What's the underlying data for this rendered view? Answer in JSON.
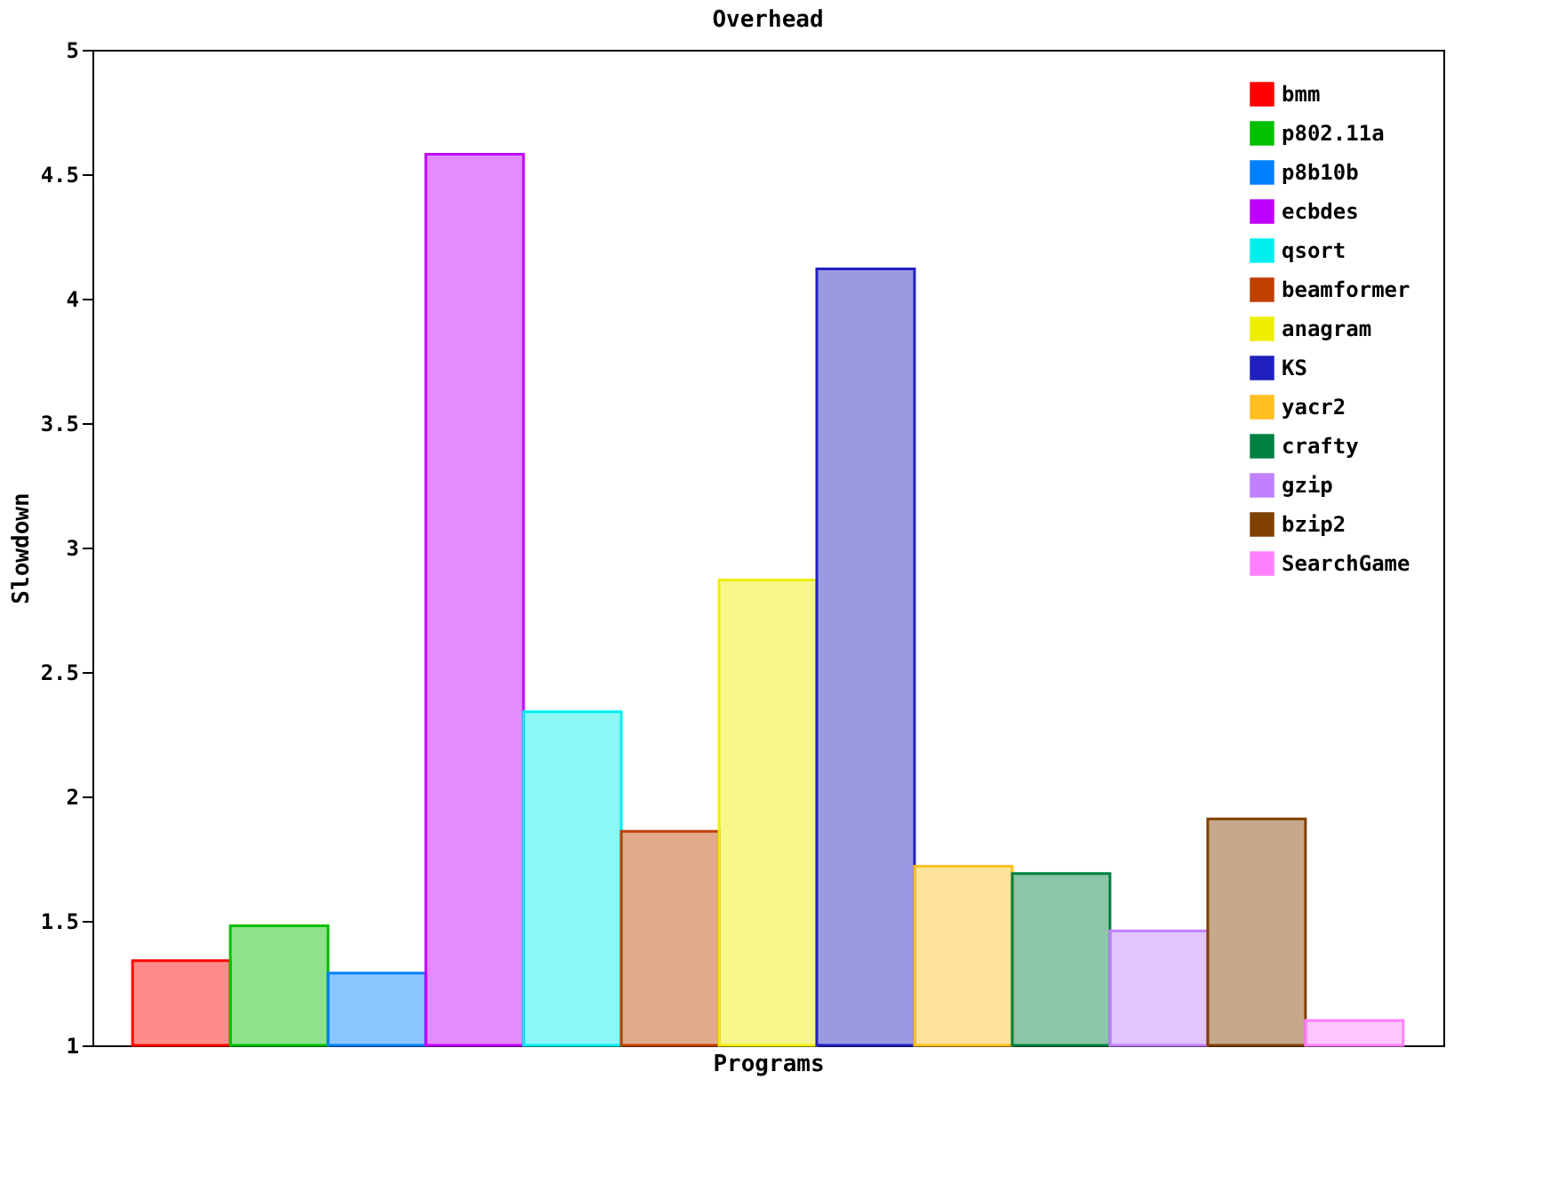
{
  "chart_data": {
    "type": "bar",
    "title": "Overhead",
    "xlabel": "Programs",
    "ylabel": "Slowdown",
    "categories": [
      null
    ],
    "series": [
      {
        "name": "bmm",
        "color": "#ff0000",
        "values": [
          1.34
        ]
      },
      {
        "name": "p802.11a",
        "color": "#00c000",
        "values": [
          1.48
        ]
      },
      {
        "name": "p8b10b",
        "color": "#0080ff",
        "values": [
          1.29
        ]
      },
      {
        "name": "ecbdes",
        "color": "#c000ff",
        "values": [
          4.58
        ]
      },
      {
        "name": "qsort",
        "color": "#00eeee",
        "values": [
          2.34
        ]
      },
      {
        "name": "beamformer",
        "color": "#c04000",
        "values": [
          1.86
        ]
      },
      {
        "name": "anagram",
        "color": "#eeee00",
        "values": [
          2.87
        ]
      },
      {
        "name": "KS",
        "color": "#2020c0",
        "values": [
          4.12
        ]
      },
      {
        "name": "yacr2",
        "color": "#ffc020",
        "values": [
          1.72
        ]
      },
      {
        "name": "crafty",
        "color": "#008040",
        "values": [
          1.69
        ]
      },
      {
        "name": "gzip",
        "color": "#c080ff",
        "values": [
          1.46
        ]
      },
      {
        "name": "bzip2",
        "color": "#804000",
        "values": [
          1.91
        ]
      },
      {
        "name": "SearchGame",
        "color": "#ff80ff",
        "values": [
          1.1
        ]
      }
    ],
    "ylim": [
      1,
      5
    ],
    "yticks": [
      1,
      1.5,
      2,
      2.5,
      3,
      3.5,
      4,
      4.5,
      5
    ],
    "grid": false,
    "legend": "top right",
    "tick_labels": "y"
  }
}
